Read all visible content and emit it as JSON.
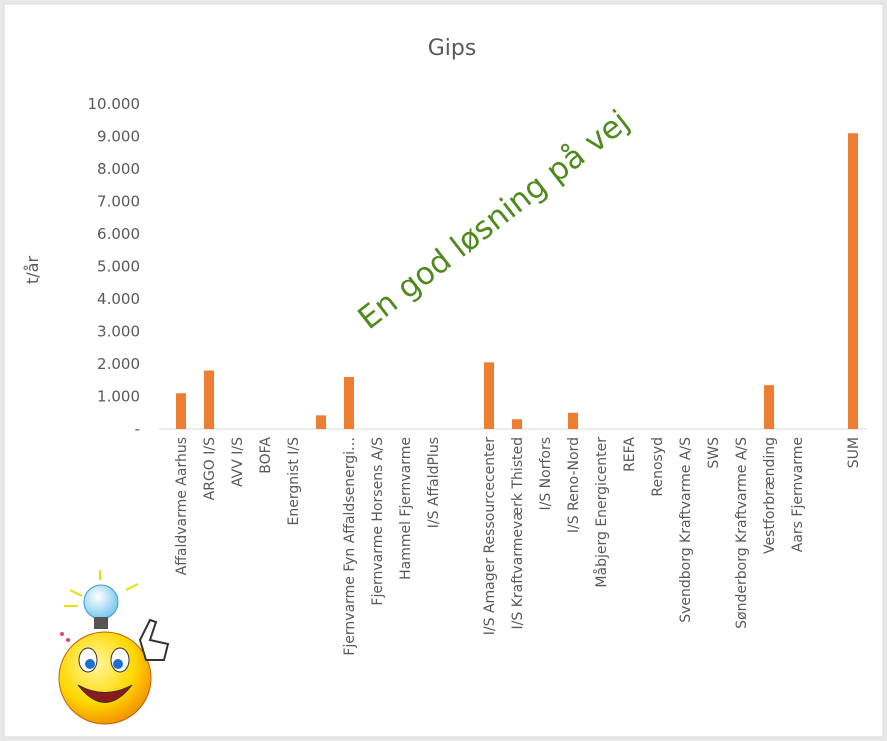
{
  "chart_data": {
    "type": "bar",
    "title": "Gips",
    "y_label": "t/år",
    "annotation": "En god løsning på vej",
    "categories": [
      "Affaldvarme Aarhus",
      "ARGO I/S",
      "AVV I/S",
      "BOFA",
      "Energnist I/S",
      null,
      "Fjernvarme Fyn Affaldsenergi…",
      "Fjernvarme Horsens A/S",
      "Hammel Fjernvarme",
      "I/S AffaldPlus",
      null,
      "I/S Amager Ressourcecenter",
      "I/S Kraftvarmeværk Thisted",
      "I/S Norfors",
      "I/S Reno-Nord",
      "Måbjerg Energicenter",
      "REFA",
      "Renosyd",
      "Svendborg Kraftvarme A/S",
      "SWS",
      "Sønderborg Kraftvarme A/S",
      "Vestforbrænding",
      "Aars Fjernvarme",
      null,
      "SUM"
    ],
    "values": [
      1100,
      1800,
      0,
      0,
      0,
      420,
      1600,
      0,
      0,
      0,
      0,
      2050,
      300,
      0,
      500,
      0,
      0,
      0,
      0,
      0,
      0,
      1350,
      0,
      0,
      9100
    ],
    "color": "#ed7d31",
    "ylim": [
      0,
      10000
    ],
    "yticks": [
      {
        "value": 0,
        "label": "-"
      },
      {
        "value": 1000,
        "label": "1.000"
      },
      {
        "value": 2000,
        "label": "2.000"
      },
      {
        "value": 3000,
        "label": "3.000"
      },
      {
        "value": 4000,
        "label": "4.000"
      },
      {
        "value": 5000,
        "label": "5.000"
      },
      {
        "value": 6000,
        "label": "6.000"
      },
      {
        "value": 7000,
        "label": "7.000"
      },
      {
        "value": 8000,
        "label": "8.000"
      },
      {
        "value": 9000,
        "label": "9.000"
      },
      {
        "value": 10000,
        "label": "10.000"
      }
    ],
    "grid": false
  }
}
